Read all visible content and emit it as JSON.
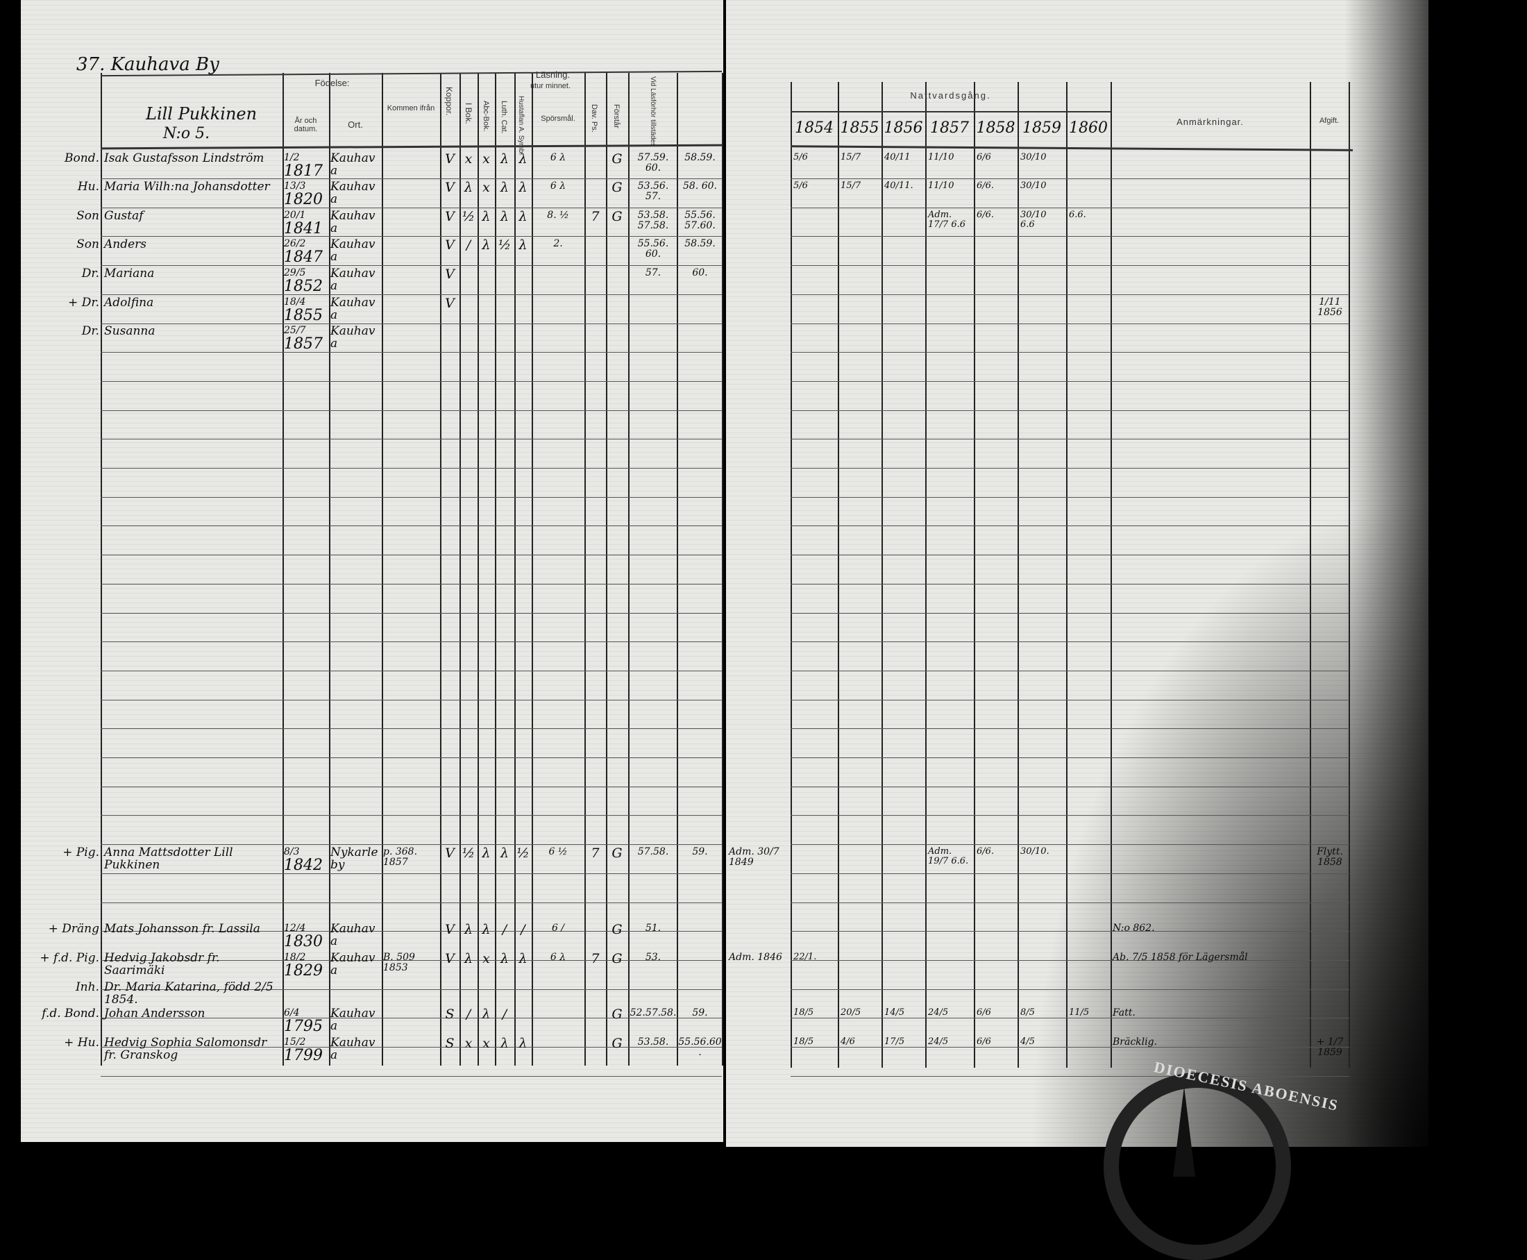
{
  "page_title": "37. Kauhava By",
  "farm": {
    "name": "Lill Pukkinen",
    "number": "N:o 5."
  },
  "headers": {
    "fodelse": "Födelse:",
    "ar_datum": "År och datum.",
    "ort": "Ort.",
    "kommen": "Kommen ifrån",
    "koppor": "Koppor.",
    "lasning": "Läsning.",
    "utur_minnet": "utur minnet.",
    "i_bok": "I Bok.",
    "abc": "Abc-Bok.",
    "luth": "Luth. Cat.",
    "husfl": "Hustaflan A. Symb.",
    "sporsmal": "Spörsmål.",
    "davps": "Dav. Ps.",
    "forstar": "Förstår",
    "lasforhor": "Vid Läsförhör tillstädes",
    "nattvard": "Nattvardsgång.",
    "years": [
      "1854",
      "1855",
      "1856",
      "1857",
      "1858",
      "1859",
      "1860"
    ],
    "anm": "Anmärkningar.",
    "afgift": "Afgift."
  },
  "entries": [
    {
      "role": "Bond.",
      "name": "Isak Gustafsson Lindström",
      "dm": "1/2",
      "year": "1817",
      "place": "Kauhava",
      "from": "",
      "kopper": "V",
      "bok": "x",
      "abc": "x",
      "luth": "λ",
      "husfl": "λ",
      "sporsmal": "6 λ",
      "davps": "",
      "forstar": "G",
      "lasforhor": "57.59. 60.",
      "lasforhor2": "58.59.",
      "adm": "",
      "communion": [
        "5/6",
        "15/7",
        "40/11",
        "11/10",
        "6/6",
        "30/10",
        ""
      ],
      "remarks": "",
      "afgift": ""
    },
    {
      "role": "Hu.",
      "name": "Maria Wilh:na Johansdotter",
      "dm": "13/3",
      "year": "1820",
      "place": "Kauhava",
      "from": "",
      "kopper": "V",
      "bok": "λ",
      "abc": "x",
      "luth": "λ",
      "husfl": "λ",
      "sporsmal": "6 λ",
      "davps": "",
      "forstar": "G",
      "lasforhor": "53.56. 57.",
      "lasforhor2": "58. 60.",
      "adm": "",
      "communion": [
        "5/6",
        "15/7",
        "40/11.",
        "11/10",
        "6/6.",
        "30/10",
        ""
      ],
      "remarks": "",
      "afgift": ""
    },
    {
      "role": "Son",
      "name": "Gustaf",
      "dm": "20/1",
      "year": "1841",
      "place": "Kauhava",
      "from": "",
      "kopper": "V",
      "bok": "½",
      "abc": "λ",
      "luth": "λ",
      "husfl": "λ",
      "sporsmal": "8. ½",
      "davps": "7",
      "forstar": "G",
      "lasforhor": "53.58. 57.58.",
      "lasforhor2": "55.56. 57.60.",
      "adm": "",
      "communion": [
        "",
        "",
        "",
        "Adm. 17/7 6.6",
        "6/6.",
        "30/10 6.6",
        "6.6."
      ],
      "remarks": "",
      "afgift": ""
    },
    {
      "role": "Son",
      "name": "Anders",
      "dm": "26/2",
      "year": "1847",
      "place": "Kauhava",
      "from": "",
      "kopper": "V",
      "bok": "/",
      "abc": "λ",
      "luth": "½",
      "husfl": "λ",
      "sporsmal": "2.",
      "davps": "",
      "forstar": "",
      "lasforhor": "55.56. 60.",
      "lasforhor2": "58.59.",
      "adm": "",
      "communion": [
        "",
        "",
        "",
        "",
        "",
        "",
        ""
      ],
      "remarks": "",
      "afgift": ""
    },
    {
      "role": "Dr.",
      "name": "Mariana",
      "dm": "29/5",
      "year": "1852",
      "place": "Kauhava",
      "from": "",
      "kopper": "V",
      "bok": "",
      "abc": "",
      "luth": "",
      "husfl": "",
      "sporsmal": "",
      "davps": "",
      "forstar": "",
      "lasforhor": "57.",
      "lasforhor2": "60.",
      "adm": "",
      "communion": [
        "",
        "",
        "",
        "",
        "",
        "",
        ""
      ],
      "remarks": "",
      "afgift": ""
    },
    {
      "role": "+ Dr.",
      "name": "Adolfina",
      "dm": "18/4",
      "year": "1855",
      "place": "Kauhava",
      "from": "",
      "kopper": "V",
      "bok": "",
      "abc": "",
      "luth": "",
      "husfl": "",
      "sporsmal": "",
      "davps": "",
      "forstar": "",
      "lasforhor": "",
      "lasforhor2": "",
      "adm": "",
      "communion": [
        "",
        "",
        "",
        "",
        "",
        "",
        ""
      ],
      "remarks": "",
      "afgift": "1/11 1856"
    },
    {
      "role": "Dr.",
      "name": "Susanna",
      "dm": "25/7",
      "year": "1857",
      "place": "Kauhava",
      "from": "",
      "kopper": "",
      "bok": "",
      "abc": "",
      "luth": "",
      "husfl": "",
      "sporsmal": "",
      "davps": "",
      "forstar": "",
      "lasforhor": "",
      "lasforhor2": "",
      "adm": "",
      "communion": [
        "",
        "",
        "",
        "",
        "",
        "",
        ""
      ],
      "remarks": "",
      "afgift": ""
    },
    {
      "role": "+ Pig.",
      "name": "Anna Mattsdotter Lill Pukkinen",
      "dm": "8/3",
      "year": "1842",
      "place": "Nykarleby",
      "from": "p. 368. 1857",
      "kopper": "V",
      "bok": "½",
      "abc": "λ",
      "luth": "λ",
      "husfl": "½",
      "sporsmal": "6 ½",
      "davps": "7",
      "forstar": "G",
      "lasforhor": "57.58.",
      "lasforhor2": "59.",
      "adm": "Adm. 30/7 1849",
      "communion": [
        "",
        "",
        "",
        "Adm. 19/7 6.6.",
        "6/6.",
        "30/10.",
        ""
      ],
      "remarks": "",
      "afgift": "Flytt. 1858"
    },
    {
      "role": "+ Dräng",
      "name": "Mats Johansson fr. Lassila",
      "dm": "12/4",
      "year": "1830",
      "place": "Kauhava",
      "from": "",
      "kopper": "V",
      "bok": "λ",
      "abc": "λ",
      "luth": "/",
      "husfl": "/",
      "sporsmal": "6 /",
      "davps": "",
      "forstar": "G",
      "lasforhor": "51.",
      "lasforhor2": "",
      "adm": "",
      "communion": [
        "",
        "",
        "",
        "",
        "",
        "",
        ""
      ],
      "remarks": "N:o 862.",
      "afgift": ""
    },
    {
      "role": "+ f.d. Pig.",
      "name": "Hedvig Jakobsdr fr. Saarimäki",
      "dm": "18/2",
      "year": "1829",
      "place": "Kauhava",
      "from": "B. 509 1853",
      "kopper": "V",
      "bok": "λ",
      "abc": "x",
      "luth": "λ",
      "husfl": "λ",
      "sporsmal": "6 λ",
      "davps": "7",
      "forstar": "G",
      "lasforhor": "53.",
      "lasforhor2": "",
      "adm": "Adm. 1846",
      "communion": [
        "22/1.",
        "",
        "",
        "",
        "",
        "",
        ""
      ],
      "remarks": "Ab. 7/5 1858 för Lägersmål",
      "afgift": ""
    },
    {
      "role": "Inh.",
      "name": "Dr. Maria Katarina, född 2/5 1854.",
      "dm": "",
      "year": "",
      "place": "",
      "from": "",
      "kopper": "",
      "bok": "",
      "abc": "",
      "luth": "",
      "husfl": "",
      "sporsmal": "",
      "davps": "",
      "forstar": "",
      "lasforhor": "",
      "lasforhor2": "",
      "adm": "",
      "communion": [
        "",
        "",
        "",
        "",
        "",
        "",
        ""
      ],
      "remarks": "",
      "afgift": ""
    },
    {
      "role": "f.d. Bond.",
      "name": "Johan Andersson",
      "dm": "6/4",
      "year": "1795",
      "place": "Kauhava",
      "from": "",
      "kopper": "S",
      "bok": "/",
      "abc": "λ",
      "luth": "/",
      "husfl": "",
      "sporsmal": "",
      "davps": "",
      "forstar": "G",
      "lasforhor": "52.57.58.",
      "lasforhor2": "59.",
      "adm": "",
      "communion": [
        "18/5",
        "20/5",
        "14/5",
        "24/5",
        "6/6",
        "8/5",
        "11/5"
      ],
      "remarks": "Fatt.",
      "afgift": ""
    },
    {
      "role": "+ Hu.",
      "name": "Hedvig Sophia Salomonsdr fr. Granskog",
      "dm": "15/2",
      "year": "1799",
      "place": "Kauhava",
      "from": "",
      "kopper": "S",
      "bok": "x",
      "abc": "x",
      "luth": "λ",
      "husfl": "λ",
      "sporsmal": "",
      "davps": "",
      "forstar": "G",
      "lasforhor": "53.58.",
      "lasforhor2": "55.56.60.",
      "adm": "",
      "communion": [
        "18/5",
        "4/6",
        "17/5",
        "24/5",
        "6/6",
        "4/5",
        ""
      ],
      "remarks": "Bräcklig.",
      "afgift": "+ 1/7 1859"
    }
  ],
  "stamp": {
    "text": "DIOECESIS ABOENSIS"
  },
  "colors": {
    "paper": "#e8e8e4",
    "ink": "#111111",
    "background": "#000000"
  }
}
